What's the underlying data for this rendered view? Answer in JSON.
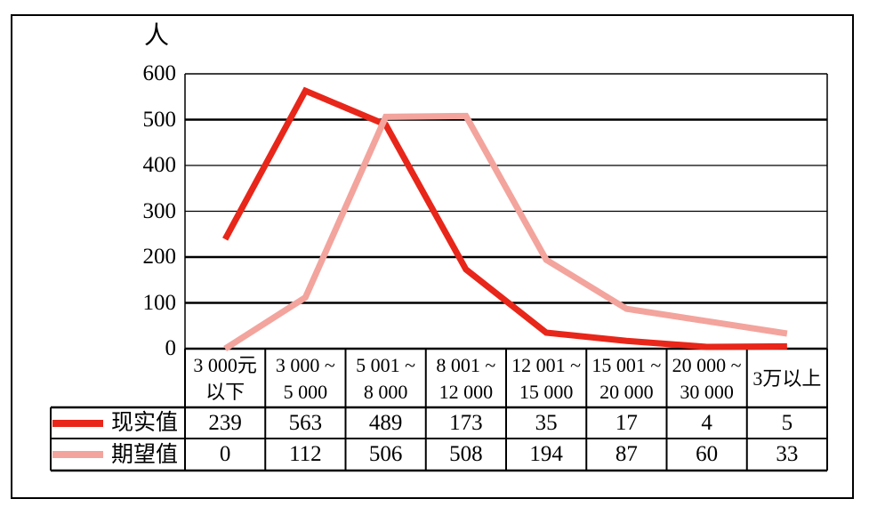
{
  "chart_data": {
    "type": "line",
    "title": "",
    "unit_label": "人",
    "xlabel": "",
    "ylabel": "人",
    "categories": [
      "3 000元\n以下",
      "3 000 ~\n5 000",
      "5 001 ~\n8 000",
      "8 001 ~\n12 000",
      "12 001 ~\n15 000",
      "15 001 ~\n20 000",
      "20 000 ~\n30 000",
      "3万以上"
    ],
    "series": [
      {
        "name": "现实值",
        "color": "#e8261a",
        "values": [
          239,
          563,
          489,
          173,
          35,
          17,
          4,
          5
        ]
      },
      {
        "name": "期望值",
        "color": "#f3a49d",
        "values": [
          0,
          112,
          506,
          508,
          194,
          87,
          60,
          33
        ]
      }
    ],
    "ylim": [
      0,
      600
    ],
    "yticks": [
      0,
      100,
      200,
      300,
      400,
      500,
      600
    ],
    "grid": "horizontal",
    "legend_position": "table-left",
    "line_color_black": "#000000"
  }
}
